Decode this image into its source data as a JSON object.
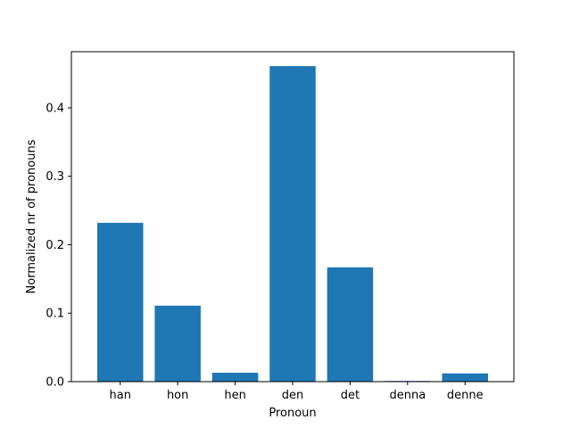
{
  "chart_data": {
    "type": "bar",
    "categories": [
      "han",
      "hon",
      "hen",
      "den",
      "det",
      "denna",
      "denne"
    ],
    "values": [
      0.232,
      0.111,
      0.013,
      0.461,
      0.167,
      0.001,
      0.012
    ],
    "title": "",
    "xlabel": "Pronoun",
    "ylabel": "Normalized nr of pronouns",
    "ylim": [
      0,
      0.482
    ],
    "yticks": [
      0.0,
      0.1,
      0.2,
      0.3,
      0.4
    ],
    "ytick_labels": [
      "0.0",
      "0.1",
      "0.2",
      "0.3",
      "0.4"
    ],
    "grid": false,
    "legend": "none",
    "bar_color": "#1f77b4"
  }
}
